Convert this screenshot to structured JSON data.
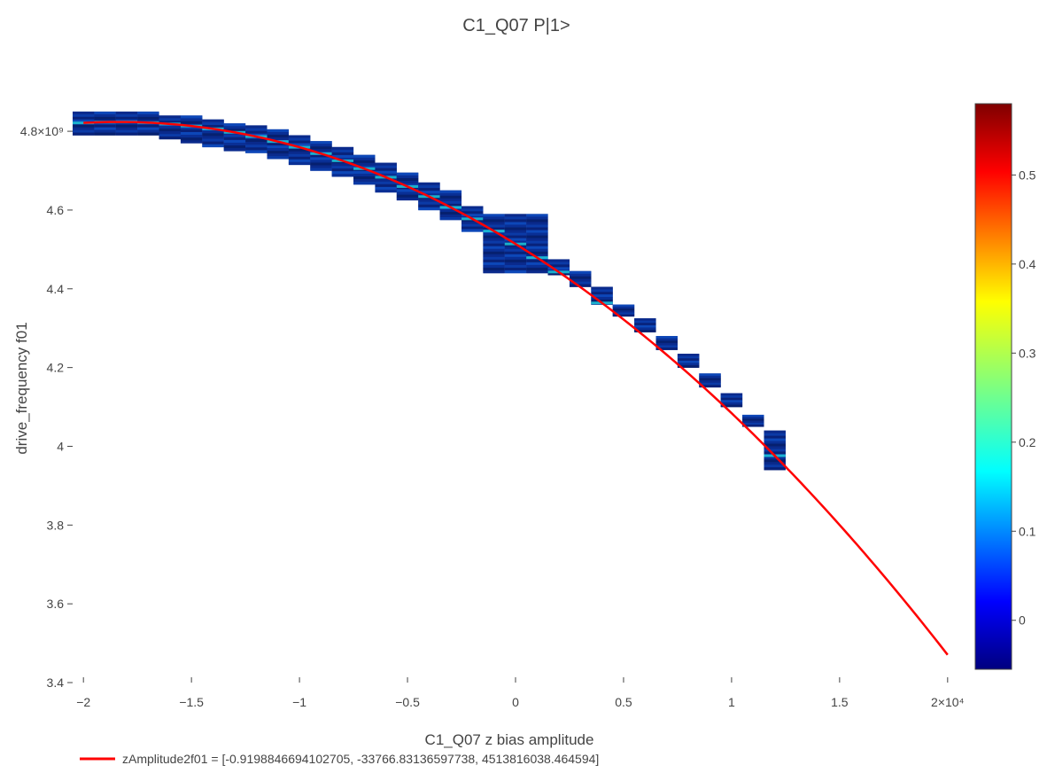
{
  "chart_data": {
    "type": "heatmap",
    "title": "C1_Q07 P|1>",
    "xlabel": "C1_Q07 z bias amplitude",
    "ylabel": "drive_frequency f01",
    "xlim": [
      -20500,
      20500
    ],
    "ylim": [
      3400000000,
      4870000000
    ],
    "x_ticks": [
      -20000,
      -15000,
      -10000,
      -5000,
      0,
      5000,
      10000,
      15000,
      20000
    ],
    "x_tick_labels": [
      "−2",
      "−1.5",
      "−1",
      "−0.5",
      "0",
      "0.5",
      "1",
      "1.5",
      "2×10⁴"
    ],
    "y_ticks": [
      3400000000,
      3600000000,
      3800000000,
      4000000000,
      4200000000,
      4400000000,
      4600000000,
      4800000000
    ],
    "y_tick_labels": [
      "3.4",
      "3.6",
      "3.8",
      "4",
      "4.2",
      "4.4",
      "4.6",
      "4.8×10⁹"
    ],
    "colorscale": "jet",
    "colorbar": {
      "range": [
        -0.055,
        0.58
      ],
      "ticks": [
        0,
        0.1,
        0.2,
        0.3,
        0.4,
        0.5
      ],
      "tick_labels": [
        "0",
        "0.1",
        "0.2",
        "0.3",
        "0.4",
        "0.5"
      ]
    },
    "heatmap_blocks": {
      "x_centers": [
        -20000,
        -19000,
        -18000,
        -17000,
        -16000,
        -15000,
        -14000,
        -13000,
        -12000,
        -11000,
        -10000,
        -9000,
        -8000,
        -7000,
        -6000,
        -5000,
        -4000,
        -3000,
        -2000,
        -1000,
        0,
        1000,
        2000,
        3000,
        4000,
        5000,
        6000,
        7000,
        8000,
        9000,
        10000,
        11000,
        12000
      ],
      "freq_spans": [
        [
          4790000000,
          4850000000
        ],
        [
          4790000000,
          4850000000
        ],
        [
          4790000000,
          4850000000
        ],
        [
          4790000000,
          4850000000
        ],
        [
          4780000000,
          4840000000
        ],
        [
          4770000000,
          4840000000
        ],
        [
          4760000000,
          4830000000
        ],
        [
          4750000000,
          4820000000
        ],
        [
          4745000000,
          4815000000
        ],
        [
          4730000000,
          4805000000
        ],
        [
          4715000000,
          4790000000
        ],
        [
          4700000000,
          4775000000
        ],
        [
          4685000000,
          4760000000
        ],
        [
          4665000000,
          4740000000
        ],
        [
          4645000000,
          4720000000
        ],
        [
          4625000000,
          4695000000
        ],
        [
          4600000000,
          4670000000
        ],
        [
          4575000000,
          4650000000
        ],
        [
          4545000000,
          4610000000
        ],
        [
          4440000000,
          4590000000
        ],
        [
          4440000000,
          4590000000
        ],
        [
          4440000000,
          4590000000
        ],
        [
          4435000000,
          4475000000
        ],
        [
          4405000000,
          4445000000
        ],
        [
          4360000000,
          4405000000
        ],
        [
          4330000000,
          4360000000
        ],
        [
          4290000000,
          4325000000
        ],
        [
          4245000000,
          4280000000
        ],
        [
          4200000000,
          4235000000
        ],
        [
          4150000000,
          4185000000
        ],
        [
          4100000000,
          4135000000
        ],
        [
          4050000000,
          4080000000
        ],
        [
          3940000000,
          4040000000
        ]
      ]
    },
    "series": [
      {
        "name": "zAmplitude2f01 = [-0.9198846694102705, -33766.83136597738, 4513816038.464594]",
        "type": "line",
        "color": "#ff0000",
        "fit_coefficients": [
          -0.9198846694102705,
          -33766.83136597738,
          4513816038.464594
        ],
        "x_range": [
          -20000,
          20000
        ]
      }
    ],
    "legend_position": "bottom-left"
  }
}
